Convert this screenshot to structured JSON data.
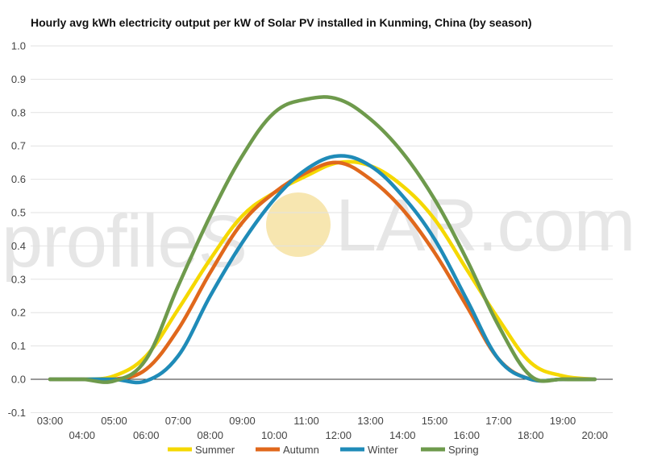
{
  "chart_data": {
    "type": "line",
    "title": "Hourly avg kWh electricity output per kW of Solar PV installed in Kunming, China (by season)",
    "xlabel": "",
    "ylabel": "",
    "ylim": [
      -0.1,
      1.0
    ],
    "y_ticks": [
      "1.0",
      "0.9",
      "0.8",
      "0.7",
      "0.6",
      "0.5",
      "0.4",
      "0.3",
      "0.2",
      "0.1",
      "0.0",
      "-0.1"
    ],
    "y_tick_values": [
      1.0,
      0.9,
      0.8,
      0.7,
      0.6,
      0.5,
      0.4,
      0.3,
      0.2,
      0.1,
      0.0,
      -0.1
    ],
    "categories": [
      "03:00",
      "04:00",
      "05:00",
      "06:00",
      "07:00",
      "08:00",
      "09:00",
      "10:00",
      "11:00",
      "12:00",
      "13:00",
      "14:00",
      "15:00",
      "16:00",
      "17:00",
      "18:00",
      "19:00",
      "20:00"
    ],
    "grid": true,
    "legend_position": "bottom",
    "series": [
      {
        "name": "Summer",
        "color": "#f5d800",
        "values": [
          0.0,
          0.0,
          0.01,
          0.07,
          0.21,
          0.36,
          0.49,
          0.56,
          0.61,
          0.65,
          0.64,
          0.58,
          0.48,
          0.33,
          0.18,
          0.05,
          0.01,
          0.0
        ]
      },
      {
        "name": "Autumn",
        "color": "#e0681c",
        "values": [
          0.0,
          0.0,
          0.0,
          0.03,
          0.15,
          0.32,
          0.47,
          0.56,
          0.62,
          0.65,
          0.6,
          0.51,
          0.38,
          0.22,
          0.06,
          0.0,
          0.0,
          0.0
        ]
      },
      {
        "name": "Winter",
        "color": "#1f8bb8",
        "values": [
          0.0,
          0.0,
          0.0,
          -0.005,
          0.07,
          0.25,
          0.41,
          0.54,
          0.63,
          0.67,
          0.64,
          0.55,
          0.42,
          0.24,
          0.06,
          0.0,
          0.0,
          0.0
        ]
      },
      {
        "name": "Spring",
        "color": "#6e9a4c",
        "values": [
          0.0,
          0.0,
          -0.005,
          0.06,
          0.28,
          0.49,
          0.67,
          0.8,
          0.84,
          0.84,
          0.78,
          0.68,
          0.54,
          0.36,
          0.16,
          0.01,
          0.0,
          0.0
        ]
      }
    ]
  },
  "watermark": {
    "left_text": "profileS",
    "right_text": "LAR.com",
    "sun_color": "#f7e6b0"
  }
}
